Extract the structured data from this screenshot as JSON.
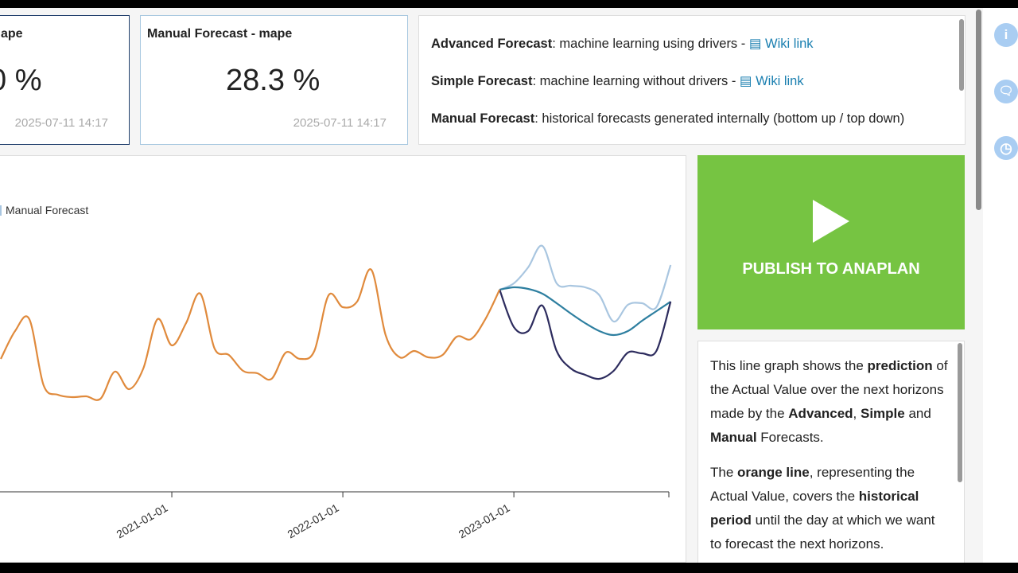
{
  "kpis": [
    {
      "title": "ape",
      "value": "0 %",
      "date": "2025-07-11 14:17"
    },
    {
      "title": "Manual Forecast - mape",
      "value": "28.3 %",
      "date": "2025-07-11 14:17"
    }
  ],
  "info": {
    "advanced": {
      "name": "Advanced Forecast",
      "desc": ": machine learning using drivers - ",
      "link": "Wiki link"
    },
    "simple": {
      "name": "Simple Forecast",
      "desc": ": machine learning without drivers - ",
      "link": "Wiki link"
    },
    "manual": {
      "name": "Manual Forecast",
      "desc": ": historical forecasts generated internally (bottom up / top down)"
    }
  },
  "publish_label": "PUBLISH TO ANAPLAN",
  "description": {
    "p1": [
      "This line graph shows the ",
      "prediction",
      " of the Actual Value over the next horizons made by the ",
      "Advanced",
      ", ",
      "Simple",
      " and ",
      "Manual",
      " Forecasts."
    ],
    "p2": [
      "The ",
      "orange line",
      ", representing the Actual Value, covers the ",
      "historical period",
      " until the day at which we want to forecast the next horizons."
    ]
  },
  "side_icons": [
    "info-icon",
    "chat-icon",
    "clock-icon"
  ],
  "chart_data": {
    "type": "line",
    "legend": [
      "Manual Forecast"
    ],
    "x_tick_labels": [
      "2021-01-01",
      "2022-01-01",
      "2023-01-01"
    ],
    "colors": {
      "actual": "#e08a3c",
      "advanced": "#2d2c5e",
      "simple": "#2e7fa0",
      "manual": "#a9c6e0"
    },
    "series": [
      {
        "key": "actual",
        "start": "2020-01",
        "values": [
          170,
          205,
          220,
          137,
          125,
          122,
          123,
          120,
          154,
          132,
          158,
          220,
          187,
          215,
          252,
          183,
          175,
          155,
          152,
          145,
          178,
          170,
          180,
          250,
          235,
          242,
          282,
          200,
          172,
          180,
          172,
          175,
          198,
          195,
          220,
          257
        ]
      },
      {
        "key": "advanced",
        "start": "2022-12",
        "values": [
          257,
          210,
          205,
          237,
          180,
          158,
          150,
          145,
          155,
          178,
          177,
          180,
          242
        ]
      },
      {
        "key": "simple",
        "start": "2022-12",
        "values": [
          257,
          260,
          258,
          252,
          240,
          227,
          215,
          205,
          200,
          205,
          218,
          230,
          242
        ]
      },
      {
        "key": "manual",
        "name": "Manual Forecast",
        "start": "2022-12",
        "values": [
          257,
          265,
          285,
          312,
          265,
          262,
          260,
          250,
          217,
          238,
          240,
          235,
          288
        ]
      }
    ]
  }
}
